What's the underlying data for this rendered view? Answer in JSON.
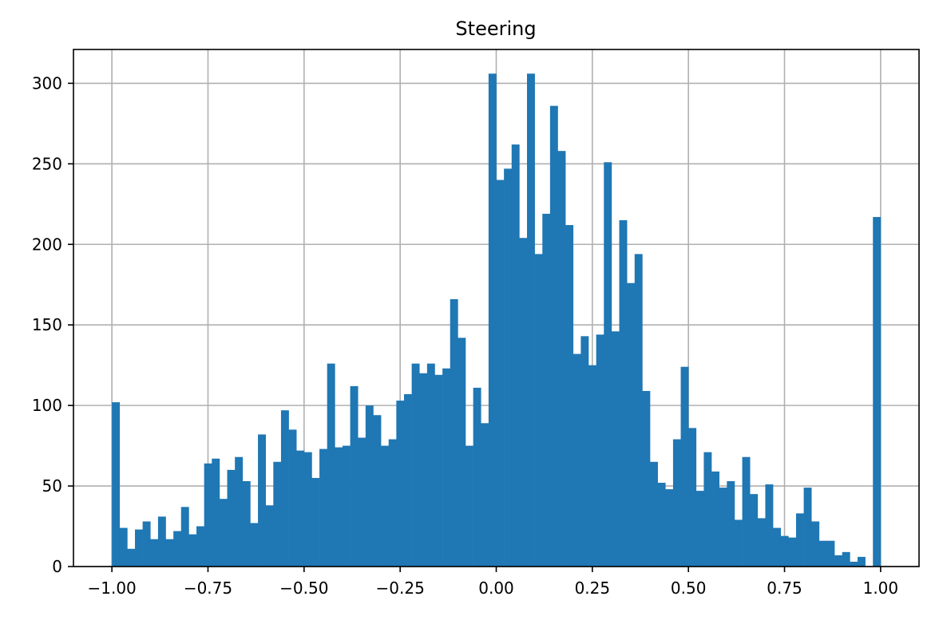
{
  "chart_data": {
    "type": "bar",
    "title": "Steering",
    "xlabel": "",
    "ylabel": "",
    "grid": true,
    "colors": {
      "bar": "#1f77b4",
      "grid": "#b0b0b0",
      "frame": "#000000"
    },
    "xlim": [
      -1.1,
      1.1
    ],
    "ylim": [
      0,
      321
    ],
    "xticks": [
      -1.0,
      -0.75,
      -0.5,
      -0.25,
      0.0,
      0.25,
      0.5,
      0.75,
      1.0
    ],
    "xtick_labels": [
      "−1.00",
      "−0.75",
      "−0.50",
      "−0.25",
      "0.00",
      "0.25",
      "0.50",
      "0.75",
      "1.00"
    ],
    "yticks": [
      0,
      50,
      100,
      150,
      200,
      250,
      300
    ],
    "ytick_labels": [
      "0",
      "50",
      "100",
      "150",
      "200",
      "250",
      "300"
    ],
    "bin_start": -1.0,
    "bin_end": 1.0,
    "bin_count": 100,
    "values": [
      102,
      24,
      11,
      23,
      28,
      17,
      31,
      17,
      22,
      37,
      20,
      25,
      64,
      67,
      42,
      60,
      68,
      53,
      27,
      82,
      38,
      65,
      97,
      85,
      72,
      71,
      55,
      73,
      126,
      74,
      75,
      112,
      80,
      100,
      94,
      75,
      79,
      103,
      107,
      126,
      120,
      126,
      119,
      123,
      166,
      142,
      75,
      111,
      89,
      306,
      240,
      247,
      262,
      204,
      306,
      194,
      219,
      286,
      258,
      212,
      132,
      143,
      125,
      144,
      251,
      146,
      215,
      176,
      194,
      109,
      65,
      52,
      48,
      79,
      124,
      86,
      47,
      71,
      59,
      49,
      53,
      29,
      68,
      45,
      30,
      51,
      24,
      19,
      18,
      33,
      49,
      28,
      16,
      16,
      7,
      9,
      3,
      6,
      0,
      217
    ]
  }
}
